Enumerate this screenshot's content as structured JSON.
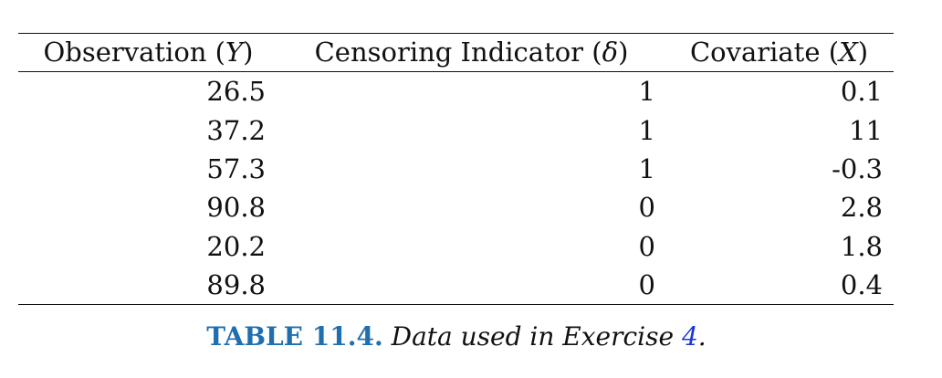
{
  "table": {
    "headers": [
      {
        "text": "Observation",
        "symbol": "Y"
      },
      {
        "text": "Censoring Indicator",
        "symbol": "δ"
      },
      {
        "text": "Covariate",
        "symbol": "X"
      }
    ],
    "rows": [
      [
        "26.5",
        "1",
        "0.1"
      ],
      [
        "37.2",
        "1",
        "11"
      ],
      [
        "57.3",
        "1",
        "-0.3"
      ],
      [
        "90.8",
        "0",
        "2.8"
      ],
      [
        "20.2",
        "0",
        "1.8"
      ],
      [
        "89.8",
        "0",
        "0.4"
      ]
    ]
  },
  "caption": {
    "label": "TABLE 11.4.",
    "text": "Data used in Exercise",
    "ref": "4",
    "end": "."
  },
  "colors": {
    "caption_label": "#1f6fb0",
    "caption_ref": "#1a37d8"
  }
}
